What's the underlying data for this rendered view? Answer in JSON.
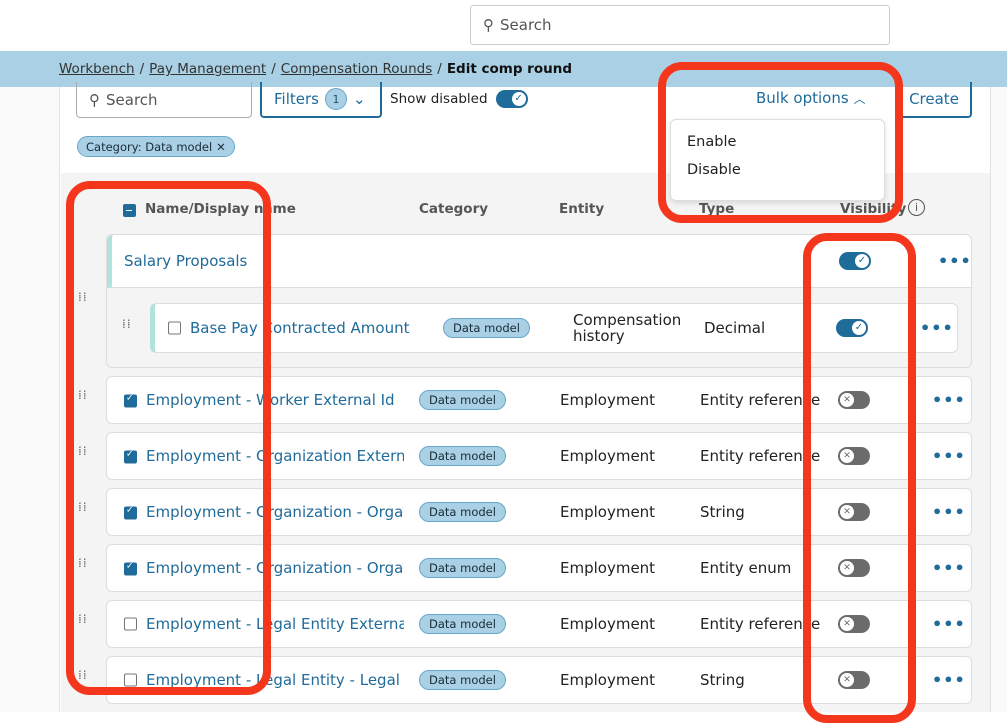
{
  "top_search": {
    "placeholder": "Search"
  },
  "breadcrumb": {
    "items": [
      "Workbench",
      "Pay Management",
      "Compensation Rounds"
    ],
    "current": "Edit comp round"
  },
  "toolbar": {
    "search_placeholder": "Search",
    "filters_label": "Filters",
    "filters_count": "1",
    "show_disabled_label": "Show disabled",
    "show_disabled": true,
    "bulk_options_label": "Bulk options",
    "create_label": "Create"
  },
  "bulk_menu": {
    "items": [
      "Enable",
      "Disable"
    ]
  },
  "filter_chip": {
    "label": "Category: Data model",
    "remove": "✕"
  },
  "table": {
    "headers": {
      "name": "Name/Display name",
      "category": "Category",
      "entity": "Entity",
      "type": "Type",
      "visibility": "Visibility"
    },
    "group": {
      "name": "Salary Proposals",
      "visible": true,
      "child": {
        "name": "Base Pay Contracted Amount",
        "category": "Data model",
        "entity": "Compensation history",
        "type": "Decimal",
        "visible": true,
        "checked": false
      }
    },
    "rows": [
      {
        "name": "Employment - Worker External Id",
        "category": "Data model",
        "entity": "Employment",
        "type": "Entity reference",
        "visible": false,
        "checked": true
      },
      {
        "name": "Employment - Organization External Id",
        "category": "Data model",
        "entity": "Employment",
        "type": "Entity reference",
        "visible": false,
        "checked": true
      },
      {
        "name": "Employment - Organization - Organization Name",
        "category": "Data model",
        "entity": "Employment",
        "type": "String",
        "visible": false,
        "checked": true
      },
      {
        "name": "Employment - Organization - Organization Type",
        "category": "Data model",
        "entity": "Employment",
        "type": "Entity enum",
        "visible": false,
        "checked": true
      },
      {
        "name": "Employment - Legal Entity External Id",
        "category": "Data model",
        "entity": "Employment",
        "type": "Entity reference",
        "visible": false,
        "checked": false
      },
      {
        "name": "Employment - Legal Entity - Legal Name",
        "category": "Data model",
        "entity": "Employment",
        "type": "String",
        "visible": false,
        "checked": false
      }
    ]
  },
  "colors": {
    "accent": "#1f6b9a",
    "breadcrumb_bg": "#a9d0e4",
    "annotation": "#f4361d",
    "group_accent": "#b2e2dc"
  }
}
